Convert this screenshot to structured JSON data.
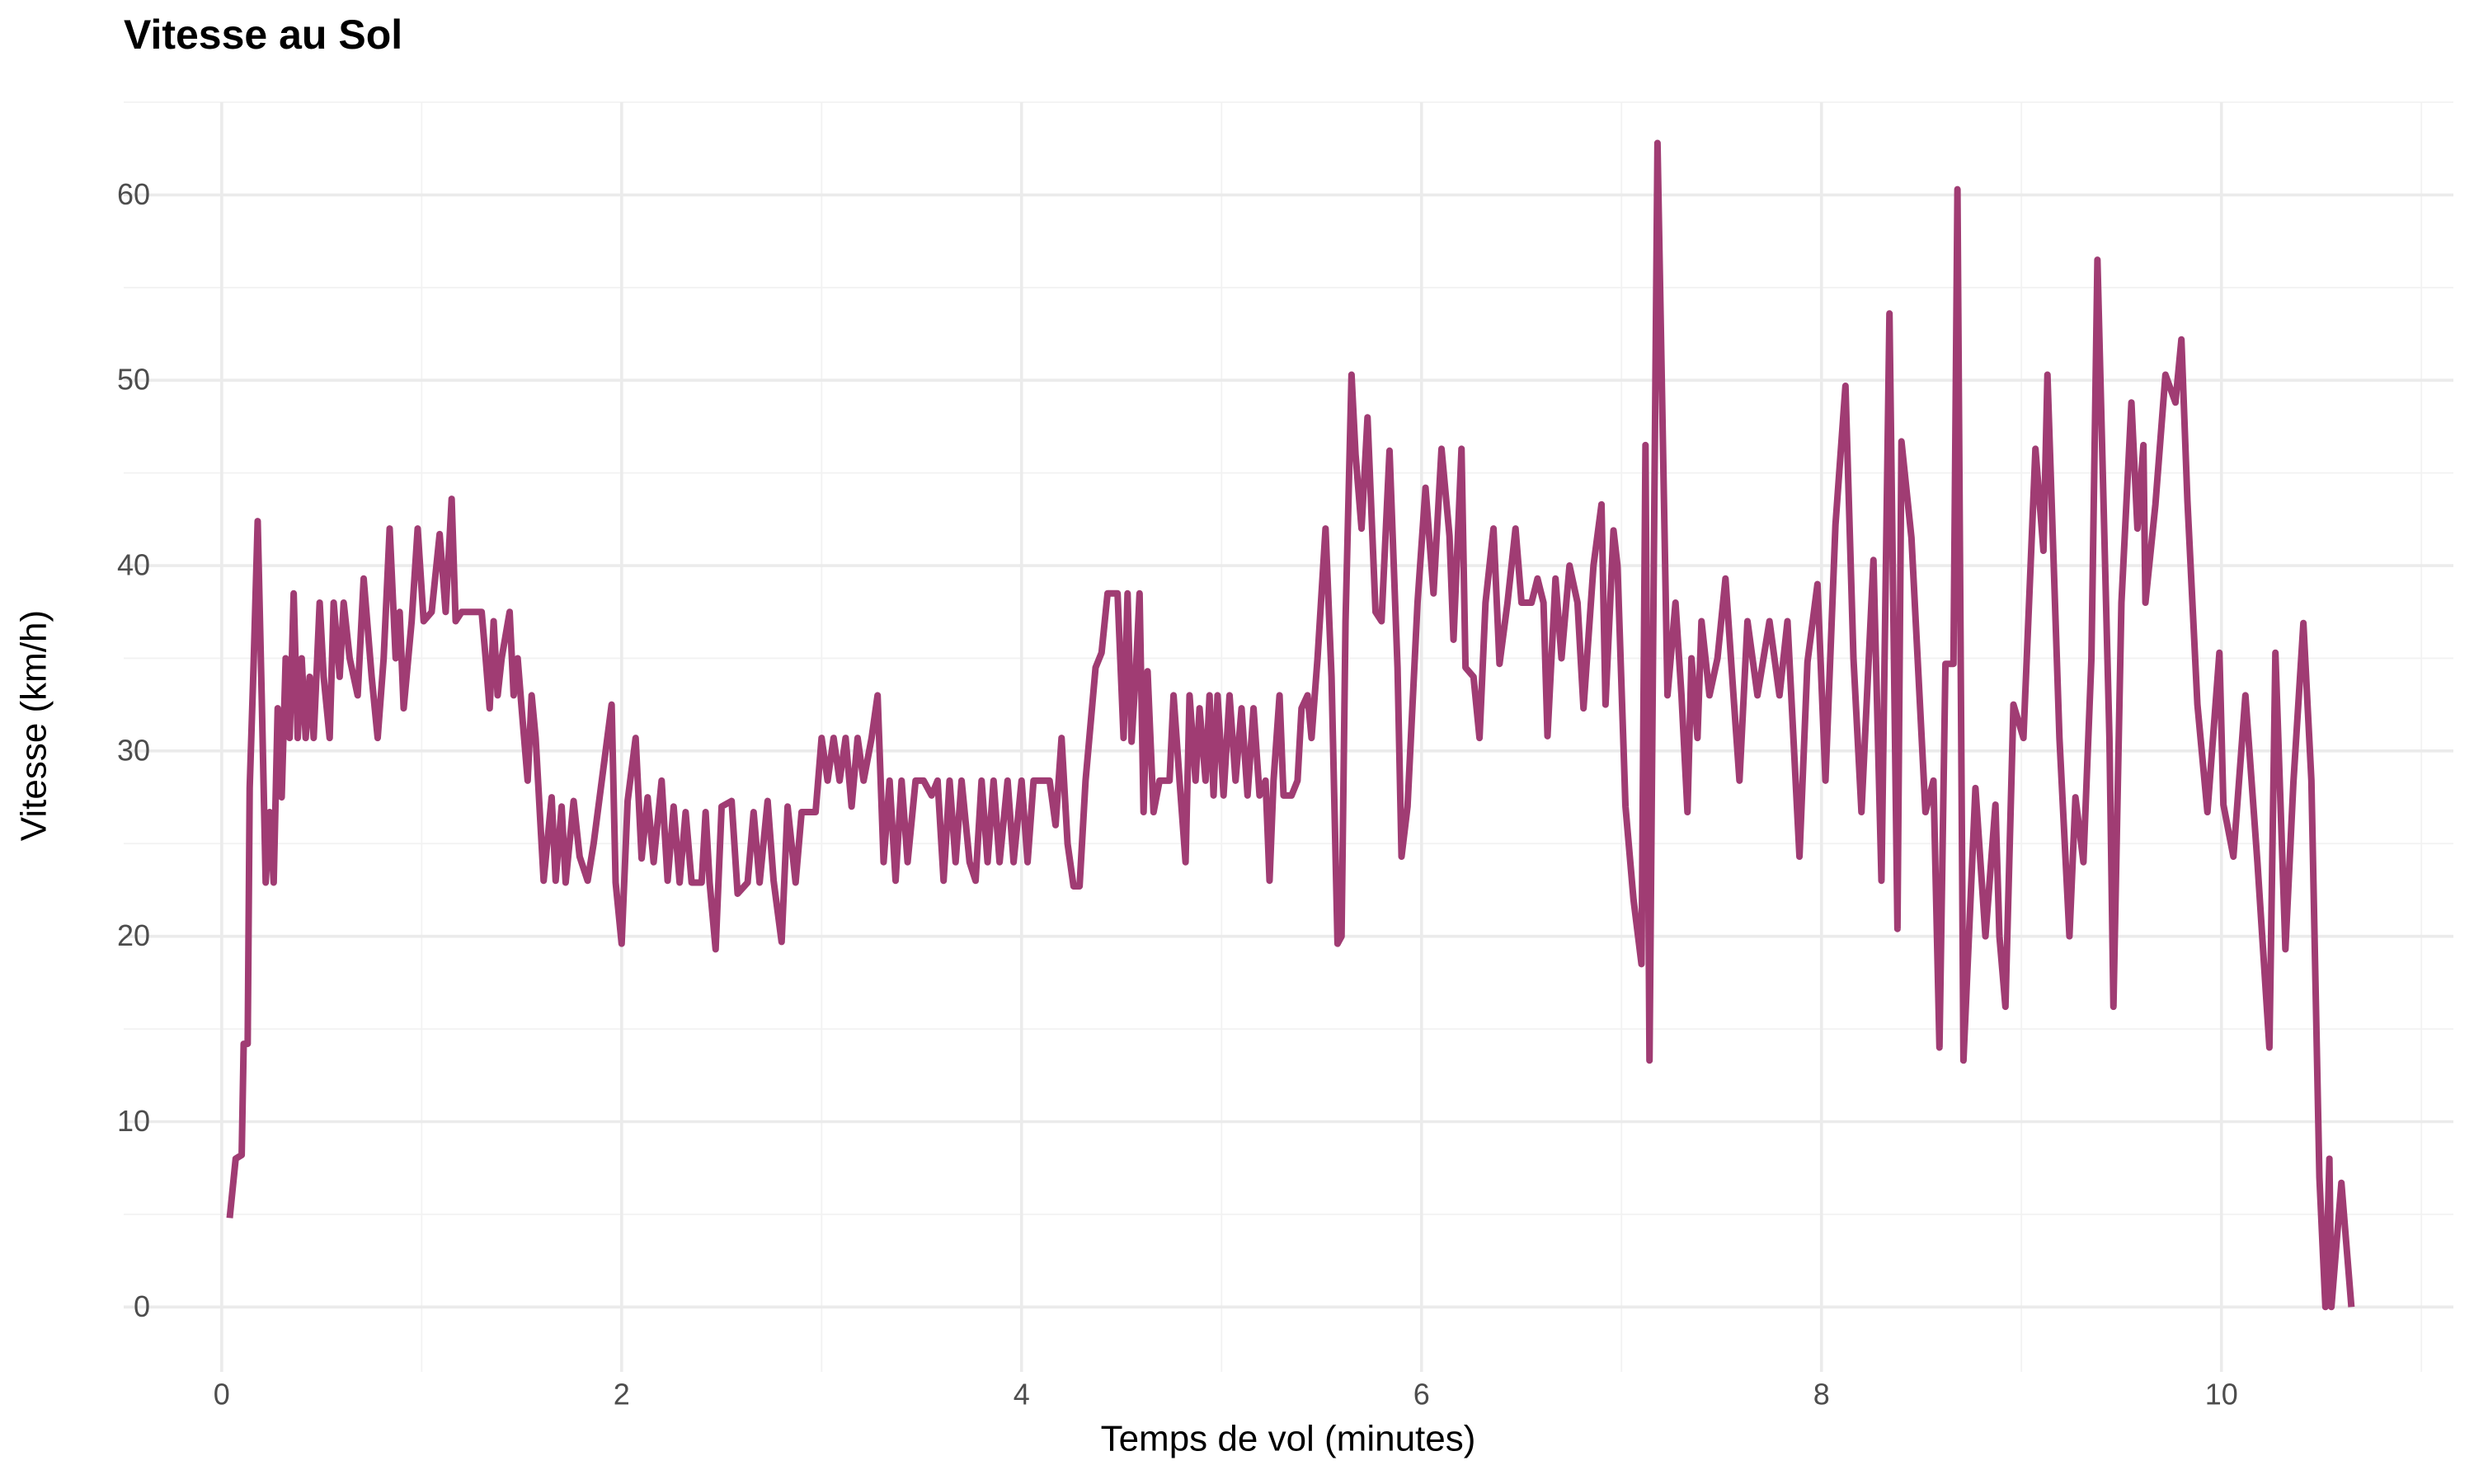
{
  "chart_data": {
    "type": "line",
    "title": "Vitesse au Sol",
    "x_label": "Temps de vol (minutes)",
    "y_label": "Vitesse (km/h)",
    "color": "#a03c73",
    "grid": true,
    "xlim": [
      -0.49,
      11.16
    ],
    "ylim": [
      -3.5,
      65
    ],
    "xticks": [
      0,
      2,
      4,
      6,
      8,
      10
    ],
    "yticks": [
      0,
      10,
      20,
      30,
      40,
      50,
      60
    ],
    "minor_xticks": [
      1,
      3,
      5,
      7,
      9,
      11
    ],
    "minor_yticks": [
      5,
      15,
      25,
      35,
      45,
      55,
      65
    ],
    "x": [
      0.04,
      0.07,
      0.1,
      0.11,
      0.13,
      0.14,
      0.16,
      0.18,
      0.2,
      0.22,
      0.24,
      0.26,
      0.28,
      0.3,
      0.32,
      0.34,
      0.36,
      0.38,
      0.4,
      0.42,
      0.44,
      0.46,
      0.49,
      0.51,
      0.54,
      0.56,
      0.59,
      0.61,
      0.64,
      0.68,
      0.71,
      0.75,
      0.78,
      0.81,
      0.84,
      0.87,
      0.89,
      0.91,
      0.95,
      0.98,
      1.01,
      1.05,
      1.09,
      1.12,
      1.15,
      1.17,
      1.2,
      1.3,
      1.32,
      1.34,
      1.36,
      1.38,
      1.4,
      1.44,
      1.46,
      1.48,
      1.5,
      1.53,
      1.55,
      1.57,
      1.61,
      1.65,
      1.67,
      1.7,
      1.72,
      1.76,
      1.79,
      1.83,
      1.86,
      1.95,
      1.97,
      2.0,
      2.03,
      2.07,
      2.1,
      2.13,
      2.16,
      2.2,
      2.23,
      2.26,
      2.29,
      2.32,
      2.35,
      2.4,
      2.42,
      2.44,
      2.47,
      2.5,
      2.55,
      2.58,
      2.63,
      2.66,
      2.69,
      2.73,
      2.76,
      2.8,
      2.83,
      2.87,
      2.9,
      2.97,
      3.0,
      3.03,
      3.06,
      3.09,
      3.12,
      3.15,
      3.18,
      3.21,
      3.25,
      3.28,
      3.31,
      3.34,
      3.37,
      3.4,
      3.43,
      3.47,
      3.51,
      3.55,
      3.58,
      3.61,
      3.64,
      3.67,
      3.7,
      3.74,
      3.77,
      3.8,
      3.83,
      3.86,
      3.89,
      3.93,
      3.96,
      4.0,
      4.03,
      4.06,
      4.14,
      4.17,
      4.2,
      4.23,
      4.26,
      4.29,
      4.32,
      4.37,
      4.4,
      4.43,
      4.48,
      4.51,
      4.53,
      4.55,
      4.57,
      4.59,
      4.61,
      4.63,
      4.66,
      4.69,
      4.74,
      4.76,
      4.79,
      4.82,
      4.84,
      4.87,
      4.89,
      4.92,
      4.94,
      4.96,
      4.98,
      5.01,
      5.04,
      5.07,
      5.1,
      5.13,
      5.16,
      5.19,
      5.22,
      5.24,
      5.26,
      5.29,
      5.31,
      5.35,
      5.38,
      5.4,
      5.43,
      5.45,
      5.48,
      5.52,
      5.55,
      5.58,
      5.6,
      5.62,
      5.65,
      5.67,
      5.7,
      5.73,
      5.77,
      5.8,
      5.84,
      5.88,
      5.9,
      5.93,
      5.98,
      6.02,
      6.06,
      6.1,
      6.14,
      6.16,
      6.2,
      6.22,
      6.26,
      6.29,
      6.32,
      6.36,
      6.39,
      6.43,
      6.47,
      6.5,
      6.55,
      6.58,
      6.61,
      6.63,
      6.67,
      6.7,
      6.74,
      6.78,
      6.81,
      6.86,
      6.9,
      6.92,
      6.96,
      6.98,
      7.02,
      7.06,
      7.1,
      7.12,
      7.14,
      7.18,
      7.23,
      7.27,
      7.3,
      7.33,
      7.35,
      7.38,
      7.4,
      7.44,
      7.48,
      7.52,
      7.56,
      7.59,
      7.63,
      7.68,
      7.74,
      7.79,
      7.83,
      7.89,
      7.93,
      7.98,
      8.02,
      8.07,
      8.12,
      8.16,
      8.2,
      8.26,
      8.3,
      8.34,
      8.38,
      8.4,
      8.45,
      8.52,
      8.56,
      8.59,
      8.62,
      8.66,
      8.68,
      8.71,
      8.77,
      8.82,
      8.87,
      8.89,
      8.92,
      8.96,
      9.01,
      9.07,
      9.11,
      9.13,
      9.19,
      9.24,
      9.27,
      9.31,
      9.35,
      9.38,
      9.44,
      9.46,
      9.5,
      9.55,
      9.58,
      9.61,
      9.62,
      9.67,
      9.72,
      9.77,
      9.8,
      9.83,
      9.88,
      9.93,
      9.99,
      10.01,
      10.06,
      10.12,
      10.18,
      10.24,
      10.27,
      10.32,
      10.36,
      10.41,
      10.45,
      10.49,
      10.52,
      10.54,
      10.55,
      10.6,
      10.65
    ],
    "values": [
      4.8,
      8.0,
      8.2,
      14.2,
      14.2,
      28.0,
      34.8,
      42.4,
      33.0,
      22.9,
      26.7,
      22.9,
      32.3,
      27.5,
      35.0,
      30.7,
      38.5,
      30.7,
      35.0,
      30.7,
      34.0,
      30.7,
      38.0,
      34.0,
      30.7,
      38.0,
      34.0,
      38.0,
      35.0,
      33.0,
      39.3,
      34.0,
      30.7,
      35.0,
      42.0,
      35.0,
      37.5,
      32.3,
      37.0,
      42.0,
      37.0,
      37.5,
      41.7,
      37.5,
      43.6,
      37.0,
      37.5,
      37.5,
      35.0,
      32.3,
      37.0,
      33.0,
      35.0,
      37.5,
      33.0,
      35.0,
      32.3,
      28.4,
      33.0,
      30.7,
      23.0,
      27.5,
      23.0,
      27.0,
      22.9,
      27.3,
      24.3,
      23.0,
      25.0,
      32.5,
      22.9,
      19.6,
      27.3,
      30.7,
      24.2,
      27.5,
      24.0,
      28.4,
      23.0,
      27.0,
      22.9,
      26.7,
      22.9,
      22.9,
      26.7,
      22.9,
      19.3,
      27.0,
      27.3,
      22.3,
      22.9,
      26.7,
      22.9,
      27.3,
      23.0,
      19.7,
      27.0,
      22.9,
      26.7,
      26.7,
      30.7,
      28.4,
      30.7,
      28.4,
      30.7,
      27.0,
      30.7,
      28.4,
      30.7,
      33.0,
      24.0,
      28.4,
      23.0,
      28.4,
      24.0,
      28.4,
      28.4,
      27.6,
      28.4,
      23.0,
      28.4,
      24.0,
      28.4,
      24.0,
      23.0,
      28.4,
      24.0,
      28.4,
      24.0,
      28.4,
      24.0,
      28.4,
      24.0,
      28.4,
      28.4,
      26.0,
      30.7,
      25.0,
      22.7,
      22.7,
      28.4,
      34.5,
      35.3,
      38.5,
      38.5,
      30.7,
      38.5,
      30.5,
      34.0,
      38.5,
      26.7,
      34.3,
      26.7,
      28.4,
      28.4,
      33.0,
      28.4,
      24.0,
      33.0,
      28.4,
      32.3,
      28.4,
      33.0,
      27.6,
      33.0,
      27.6,
      33.0,
      28.4,
      32.3,
      27.6,
      32.3,
      27.6,
      28.4,
      23.0,
      28.4,
      33.0,
      27.6,
      27.6,
      28.4,
      32.3,
      33.0,
      30.7,
      35.0,
      42.0,
      34.0,
      19.6,
      20.0,
      37.0,
      50.3,
      46.0,
      42.0,
      48.0,
      37.5,
      37.0,
      46.2,
      34.5,
      24.3,
      27.0,
      38.0,
      44.2,
      38.5,
      46.3,
      41.6,
      36.0,
      46.3,
      34.5,
      34.0,
      30.7,
      38.0,
      42.0,
      34.7,
      38.0,
      42.0,
      38.0,
      38.0,
      39.3,
      38.0,
      30.8,
      39.3,
      35.0,
      40.0,
      38.0,
      32.3,
      40.0,
      43.3,
      32.5,
      41.9,
      40.0,
      27.0,
      22.0,
      18.5,
      46.5,
      13.3,
      62.8,
      33.0,
      38.0,
      33.0,
      26.7,
      35.0,
      30.7,
      37.0,
      33.0,
      35.0,
      39.3,
      33.0,
      28.4,
      37.0,
      33.0,
      37.0,
      33.0,
      37.0,
      24.3,
      34.8,
      39.0,
      28.4,
      42.2,
      49.7,
      35.0,
      26.7,
      40.3,
      23.0,
      53.6,
      20.4,
      46.7,
      41.5,
      26.7,
      28.4,
      14.0,
      34.7,
      34.7,
      60.3,
      13.3,
      28.0,
      20.0,
      27.1,
      20.0,
      16.2,
      32.5,
      30.7,
      46.3,
      40.8,
      50.3,
      30.7,
      20.0,
      27.5,
      24.0,
      35.0,
      56.5,
      30.7,
      16.2,
      38.0,
      48.8,
      42.0,
      46.5,
      38.0,
      43.3,
      50.3,
      48.8,
      52.2,
      43.5,
      32.5,
      26.7,
      35.3,
      27.1,
      24.3,
      33.0,
      24.0,
      14.0,
      35.3,
      19.3,
      28.3,
      36.9,
      28.4,
      7.0,
      0,
      8.0,
      0,
      6.7,
      0
    ]
  }
}
